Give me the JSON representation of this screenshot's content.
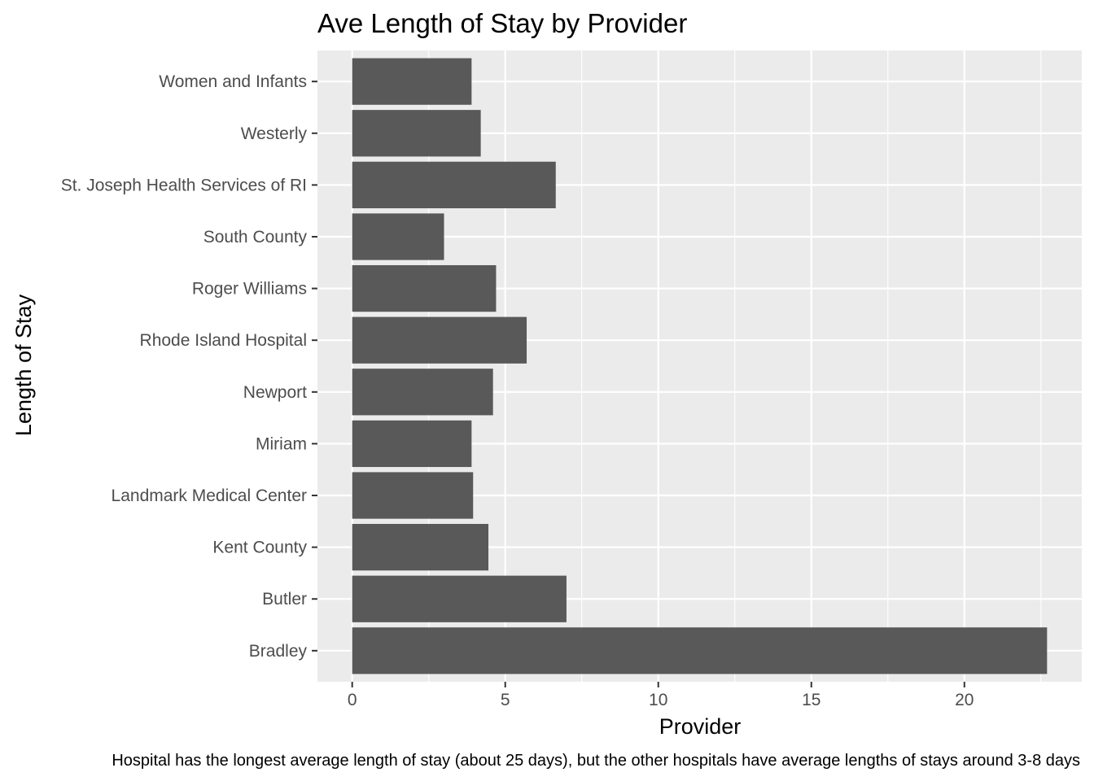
{
  "chart_data": {
    "type": "bar",
    "orientation": "horizontal",
    "title": "Ave Length of Stay by Provider",
    "xlabel": "Provider",
    "ylabel": "Length of Stay",
    "caption": "Hospital has the longest average length of stay (about 25 days), but the other hospitals have average lengths of stays around 3-8 days",
    "categories": [
      "Bradley",
      "Butler",
      "Kent County",
      "Landmark Medical Center",
      "Miriam",
      "Newport",
      "Rhode Island Hospital",
      "Roger Williams",
      "South County",
      "St. Joseph Health Services of RI",
      "Westerly",
      "Women and Infants"
    ],
    "values": [
      22.7,
      7.0,
      4.45,
      3.95,
      3.9,
      4.6,
      5.7,
      4.7,
      3.0,
      6.65,
      4.2,
      3.9
    ],
    "xticks": [
      0,
      5,
      10,
      15,
      20
    ],
    "xlim": [
      -1.135,
      23.835
    ],
    "grid": true,
    "legend": "none",
    "colors": {
      "bar": "#595959",
      "panel": "#ebebeb",
      "grid": "#ffffff",
      "tick_text": "#4d4d4d",
      "tick_mark": "#333333"
    }
  }
}
